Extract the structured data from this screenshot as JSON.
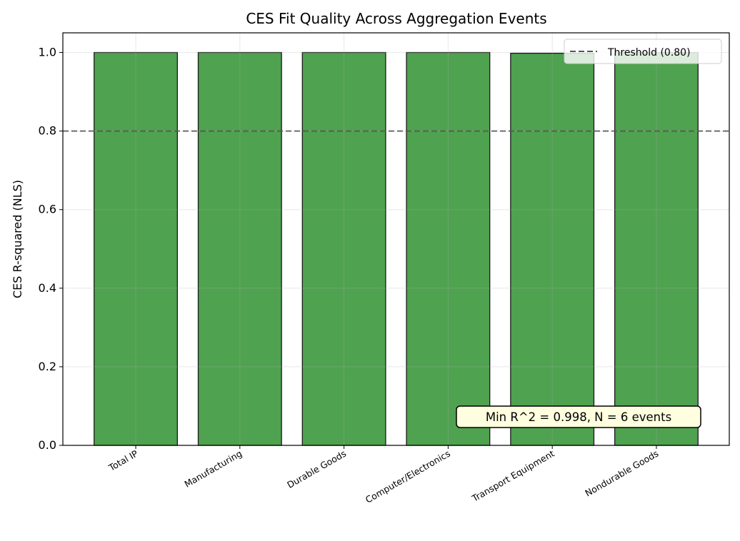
{
  "chart_data": {
    "type": "bar",
    "title": "CES Fit Quality Across Aggregation Events",
    "xlabel": "",
    "ylabel": "CES R-squared (NLS)",
    "categories": [
      "Total IP",
      "Manufacturing",
      "Durable Goods",
      "Computer/Electronics",
      "Transport Equipment",
      "Nondurable Goods"
    ],
    "values": [
      1.0,
      1.0,
      1.0,
      1.0,
      0.998,
      1.0
    ],
    "ylim": [
      0,
      1.05
    ],
    "yticks": [
      "0.0",
      "0.2",
      "0.4",
      "0.6",
      "0.8",
      "1.0"
    ],
    "grid": true,
    "bar_color": "#4fa24f",
    "bar_edge_color": "#1a1a1a",
    "threshold": {
      "value": 0.8,
      "label": "Threshold (0.80)",
      "color": "#555555",
      "style": "dashed"
    },
    "legend_placement": "upper-right",
    "annotation": {
      "text": "Min R^2 = 0.998, N = 6 events",
      "background": "#ffffe0"
    }
  }
}
